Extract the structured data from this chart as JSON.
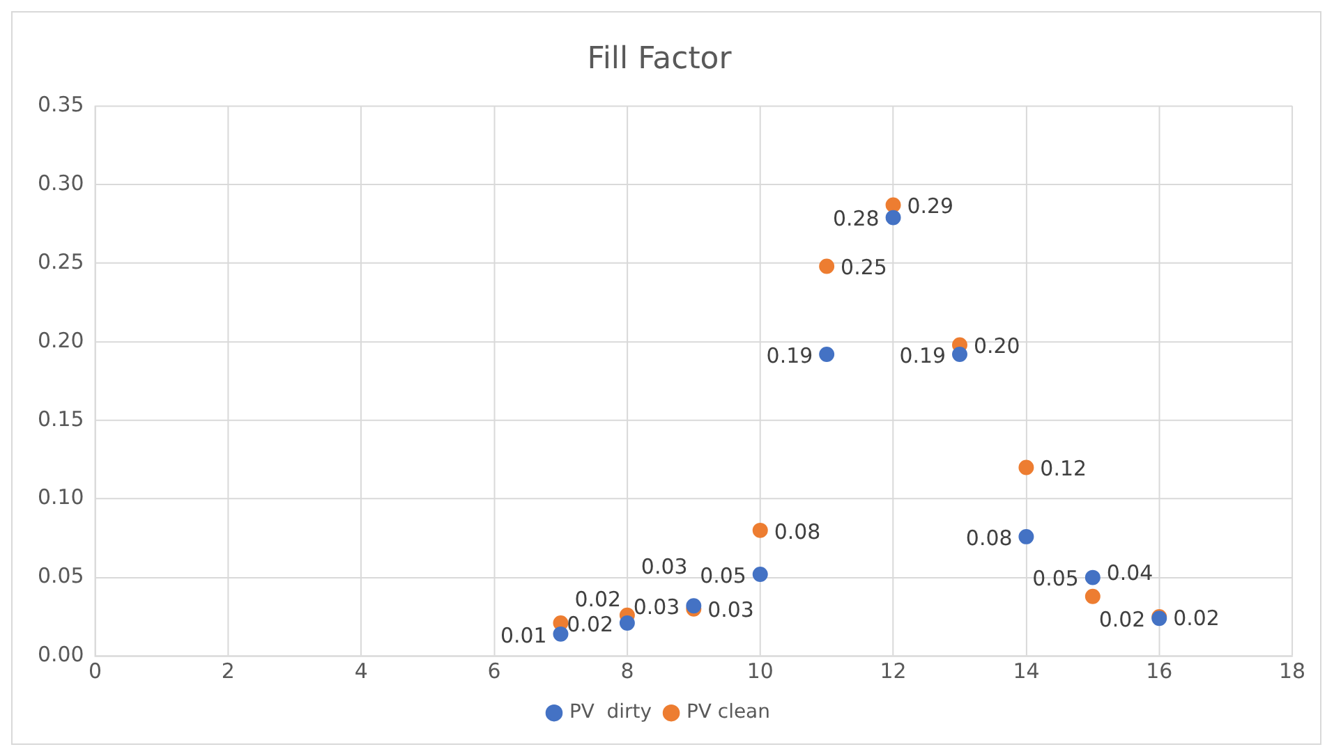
{
  "chart_data": {
    "type": "scatter",
    "title": "Fill Factor",
    "x": [
      7,
      8,
      9,
      10,
      11,
      12,
      13,
      14,
      15,
      16
    ],
    "series": [
      {
        "name": "PV  dirty",
        "color": "#4472c4",
        "values": [
          0.014,
          0.021,
          0.032,
          0.052,
          0.192,
          0.279,
          0.192,
          0.076,
          0.05,
          0.024
        ],
        "value_labels": [
          "0.01",
          "0.02",
          "0.03",
          "0.05",
          "0.19",
          "0.28",
          "0.19",
          "0.08",
          "0.05",
          "0.02"
        ]
      },
      {
        "name": "PV clean",
        "color": "#ed7d31",
        "values": [
          0.021,
          0.026,
          0.03,
          0.08,
          0.248,
          0.287,
          0.198,
          0.12,
          0.038,
          0.025
        ],
        "value_labels": [
          "0.02",
          "0.03",
          "0.03",
          "0.08",
          "0.25",
          "0.29",
          "0.20",
          "0.12",
          "0.04",
          "0.02"
        ]
      }
    ],
    "xlim": [
      0,
      18
    ],
    "xticks": [
      0,
      2,
      4,
      6,
      8,
      10,
      12,
      14,
      16,
      18
    ],
    "ylim": [
      0,
      0.35
    ],
    "yticks": [
      {
        "value": 0,
        "label": "0.00"
      },
      {
        "value": 0.05,
        "label": "0.05"
      },
      {
        "value": 0.1,
        "label": "0.10"
      },
      {
        "value": 0.15,
        "label": "0.15"
      },
      {
        "value": 0.2,
        "label": "0.20"
      },
      {
        "value": 0.25,
        "label": "0.25"
      },
      {
        "value": 0.3,
        "label": "0.30"
      },
      {
        "value": 0.35,
        "label": "0.35"
      }
    ],
    "grid": true,
    "legend": "bottom",
    "marker": "circle"
  }
}
